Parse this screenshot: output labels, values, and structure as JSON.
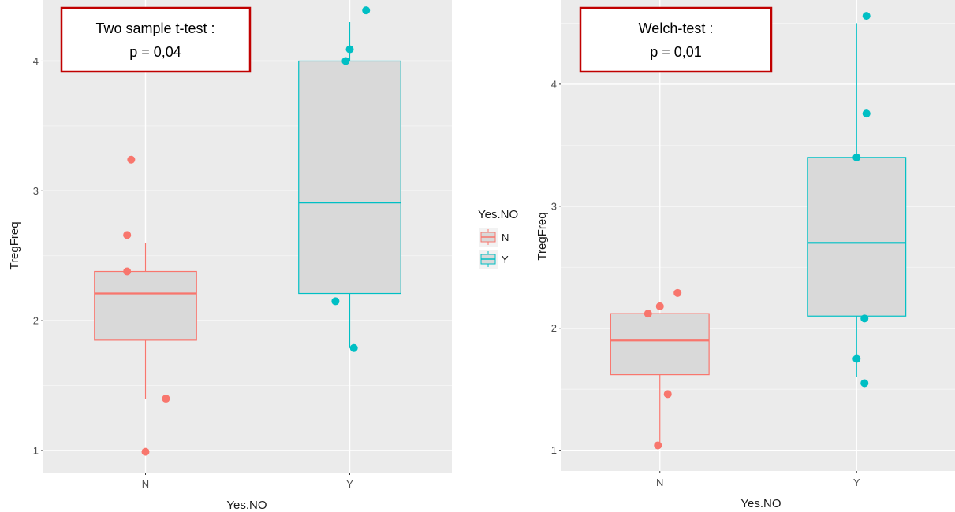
{
  "legend": {
    "title": "Yes.NO",
    "items": [
      {
        "label": "N",
        "color": "#F8766D"
      },
      {
        "label": "Y",
        "color": "#00BFC4"
      }
    ]
  },
  "chart_data": [
    {
      "type": "boxplot",
      "annotation": {
        "line1": "Two sample t-test :",
        "line2": "p = 0,04"
      },
      "xlabel": "Yes.NO",
      "ylabel": "TregFreq",
      "categories": [
        "N",
        "Y"
      ],
      "ylim": [
        0.83,
        4.47
      ],
      "yticks": [
        1,
        2,
        3,
        4
      ],
      "grid": true,
      "boxes": [
        {
          "category": "N",
          "color": "#F8766D",
          "whisker_low": 1.4,
          "q1": 1.85,
          "median": 2.21,
          "q3": 2.38,
          "whisker_high": 2.6
        },
        {
          "category": "Y",
          "color": "#00BFC4",
          "whisker_low": 1.79,
          "q1": 2.21,
          "median": 2.91,
          "q3": 4.0,
          "whisker_high": 4.3
        }
      ],
      "points": [
        {
          "category": "N",
          "y": 3.24,
          "jitter": -0.07
        },
        {
          "category": "N",
          "y": 2.66,
          "jitter": -0.09
        },
        {
          "category": "N",
          "y": 2.38,
          "jitter": -0.09
        },
        {
          "category": "N",
          "y": 1.4,
          "jitter": 0.1
        },
        {
          "category": "N",
          "y": 0.99,
          "jitter": 0.0
        },
        {
          "category": "Y",
          "y": 4.39,
          "jitter": 0.08
        },
        {
          "category": "Y",
          "y": 4.09,
          "jitter": 0.0
        },
        {
          "category": "Y",
          "y": 4.0,
          "jitter": -0.02
        },
        {
          "category": "Y",
          "y": 2.15,
          "jitter": -0.07
        },
        {
          "category": "Y",
          "y": 1.79,
          "jitter": 0.02
        }
      ]
    },
    {
      "type": "boxplot",
      "annotation": {
        "line1": "Welch-test :",
        "line2": "p = 0,01"
      },
      "xlabel": "Yes.NO",
      "ylabel": "TregFreq",
      "categories": [
        "N",
        "Y"
      ],
      "ylim": [
        0.83,
        4.69
      ],
      "yticks": [
        1,
        2,
        3,
        4
      ],
      "grid": true,
      "boxes": [
        {
          "category": "N",
          "color": "#F8766D",
          "whisker_low": 1.04,
          "q1": 1.62,
          "median": 1.9,
          "q3": 2.12,
          "whisker_high": 2.12
        },
        {
          "category": "Y",
          "color": "#00BFC4",
          "whisker_low": 1.6,
          "q1": 2.1,
          "median": 2.7,
          "q3": 3.4,
          "whisker_high": 4.5
        }
      ],
      "points": [
        {
          "category": "N",
          "y": 2.29,
          "jitter": 0.09
        },
        {
          "category": "N",
          "y": 2.18,
          "jitter": 0.0
        },
        {
          "category": "N",
          "y": 2.12,
          "jitter": -0.06
        },
        {
          "category": "N",
          "y": 1.46,
          "jitter": 0.04
        },
        {
          "category": "N",
          "y": 1.04,
          "jitter": -0.01
        },
        {
          "category": "Y",
          "y": 4.56,
          "jitter": 0.05
        },
        {
          "category": "Y",
          "y": 3.76,
          "jitter": 0.05
        },
        {
          "category": "Y",
          "y": 3.4,
          "jitter": 0.0
        },
        {
          "category": "Y",
          "y": 2.08,
          "jitter": 0.04
        },
        {
          "category": "Y",
          "y": 1.75,
          "jitter": 0.0
        },
        {
          "category": "Y",
          "y": 1.55,
          "jitter": 0.04
        }
      ]
    }
  ]
}
